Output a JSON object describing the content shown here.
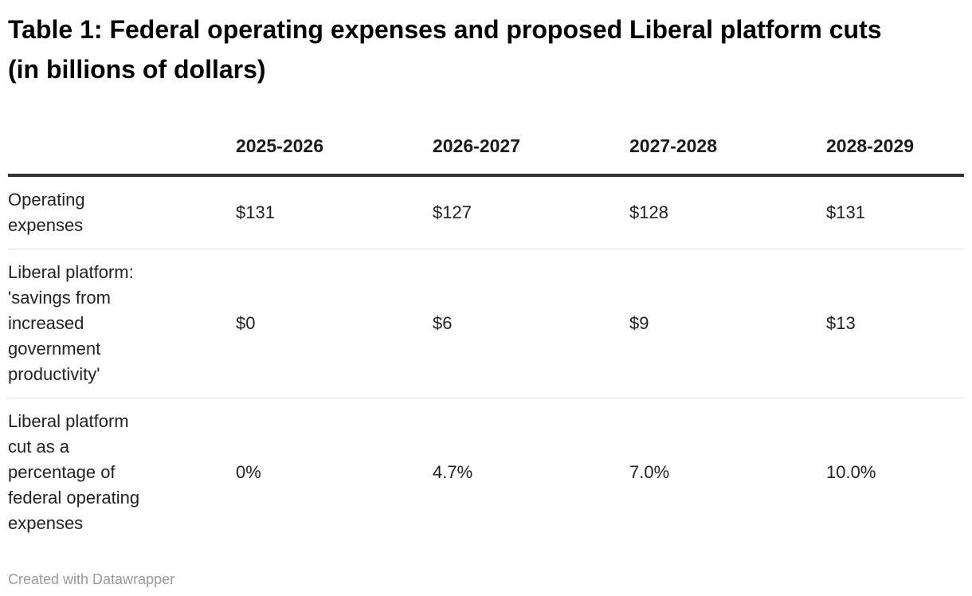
{
  "chart_data": {
    "type": "table",
    "title": "Table 1: Federal operating expenses and proposed Liberal platform cuts (in billions of dollars)",
    "columns": [
      "2025-2026",
      "2026-2027",
      "2027-2028",
      "2028-2029"
    ],
    "rows": [
      {
        "label": "Operating expenses",
        "values": [
          "$131",
          "$127",
          "$128",
          "$131"
        ]
      },
      {
        "label": "Liberal platform: 'savings from increased government productivity'",
        "values": [
          "$0",
          "$6",
          "$9",
          "$13"
        ]
      },
      {
        "label": "Liberal platform cut as a percentage of federal operating expenses",
        "values": [
          "0%",
          "4.7%",
          "7.0%",
          "10.0%"
        ]
      }
    ],
    "numeric": {
      "operating_expenses_billions": [
        131,
        127,
        128,
        131
      ],
      "liberal_platform_savings_billions": [
        0,
        6,
        9,
        13
      ],
      "cut_pct_of_operating_expenses": [
        0,
        4.7,
        7.0,
        10.0
      ]
    },
    "layout_hints": {
      "header_rule": "thick dark line under column headers",
      "row_dividers": "thin light gray lines between body rows",
      "column_alignment": "left"
    }
  },
  "footer": {
    "attribution": "Created with Datawrapper"
  },
  "colors": {
    "background": "#ffffff",
    "title_text": "#000000",
    "body_text": "#222222",
    "header_rule": "#333333",
    "row_divider": "#e0e0e0",
    "attribution_text": "#999999"
  }
}
